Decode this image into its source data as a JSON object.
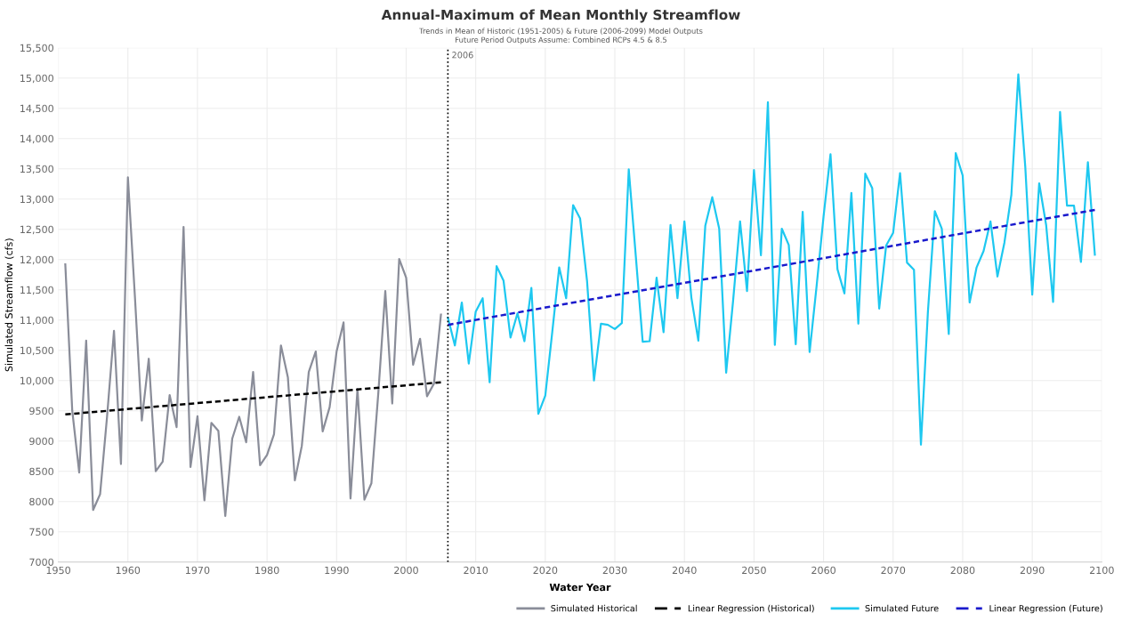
{
  "chart_data": {
    "type": "line",
    "title": "Annual-Maximum of Mean Monthly Streamflow",
    "subtitle": "Trends in Mean of Historic (1951-2005) & Future (2006-2099) Model Outputs\nFuture Period Outputs Assume: Combined RCPs 4.5 & 8.5",
    "xlabel": "Water Year",
    "ylabel": "Simulated Streamflow (cfs)",
    "xlim": [
      1950,
      2100
    ],
    "xticks": [
      1950,
      1960,
      1970,
      1980,
      1990,
      2000,
      2010,
      2020,
      2030,
      2040,
      2050,
      2060,
      2070,
      2080,
      2090,
      2100
    ],
    "ylim": [
      7000,
      15500
    ],
    "yticks": [
      7000,
      7500,
      8000,
      8500,
      9000,
      9500,
      {
        "value": 10000,
        "label": "10,000"
      },
      {
        "value": 10500,
        "label": "10,500"
      },
      {
        "value": 11000,
        "label": "11,000"
      },
      {
        "value": 11500,
        "label": "11,500"
      },
      {
        "value": 12000,
        "label": "12,000"
      },
      {
        "value": 12500,
        "label": "12,500"
      },
      {
        "value": 13000,
        "label": "13,000"
      },
      {
        "value": 13500,
        "label": "13,500"
      },
      {
        "value": 14000,
        "label": "14,000"
      },
      {
        "value": 14500,
        "label": "14,500"
      },
      {
        "value": 15000,
        "label": "15,000"
      },
      {
        "value": 15500,
        "label": "15,500"
      }
    ],
    "grid": true,
    "legend": "bottom right",
    "marker": "none",
    "ref_lines": [
      {
        "axis": "x",
        "value": 2006,
        "label": "2006",
        "color": "#000000",
        "line_style": "dotted"
      }
    ],
    "series": [
      {
        "name": "Simulated Historical",
        "color": "#8a8d99",
        "line_style": "solid",
        "x": [
          1951,
          1952,
          1953,
          1954,
          1955,
          1956,
          1957,
          1958,
          1959,
          1960,
          1961,
          1962,
          1963,
          1964,
          1965,
          1966,
          1967,
          1968,
          1969,
          1970,
          1971,
          1972,
          1973,
          1974,
          1975,
          1976,
          1977,
          1978,
          1979,
          1980,
          1981,
          1982,
          1983,
          1984,
          1985,
          1986,
          1987,
          1988,
          1989,
          1990,
          1991,
          1992,
          1993,
          1994,
          1995,
          1996,
          1997,
          1998,
          1999,
          2000,
          2001,
          2002,
          2003,
          2004,
          2005
        ],
        "values": [
          11920,
          9500,
          8480,
          10660,
          7860,
          8120,
          9400,
          10820,
          8620,
          13360,
          11400,
          9340,
          10360,
          8500,
          8660,
          9760,
          9230,
          12540,
          8570,
          9410,
          8020,
          9300,
          9170,
          7760,
          9040,
          9400,
          8980,
          10140,
          8600,
          8770,
          9110,
          10580,
          10050,
          8350,
          8920,
          10140,
          10480,
          9160,
          9560,
          10480,
          10960,
          8050,
          9860,
          8030,
          8300,
          9800,
          11480,
          9620,
          12010,
          11700,
          10260,
          10690,
          9740,
          9950,
          11090
        ]
      },
      {
        "name": "Linear Regression (Historical)",
        "color": "#000000",
        "line_style": "dashed",
        "x": [
          1951,
          2005
        ],
        "values": [
          9440,
          9970
        ]
      },
      {
        "name": "Simulated Future",
        "color": "#1ec8f0",
        "line_style": "solid",
        "x": [
          2006,
          2007,
          2008,
          2009,
          2010,
          2011,
          2012,
          2013,
          2014,
          2015,
          2016,
          2017,
          2018,
          2019,
          2020,
          2021,
          2022,
          2023,
          2024,
          2025,
          2026,
          2027,
          2028,
          2029,
          2030,
          2031,
          2032,
          2033,
          2034,
          2035,
          2036,
          2037,
          2038,
          2039,
          2040,
          2041,
          2042,
          2043,
          2044,
          2045,
          2046,
          2047,
          2048,
          2049,
          2050,
          2051,
          2052,
          2053,
          2054,
          2055,
          2056,
          2057,
          2058,
          2059,
          2060,
          2061,
          2062,
          2063,
          2064,
          2065,
          2066,
          2067,
          2068,
          2069,
          2070,
          2071,
          2072,
          2073,
          2074,
          2075,
          2076,
          2077,
          2078,
          2079,
          2080,
          2081,
          2082,
          2083,
          2084,
          2085,
          2086,
          2087,
          2088,
          2089,
          2090,
          2091,
          2092,
          2093,
          2094,
          2095,
          2096,
          2097,
          2098,
          2099
        ],
        "values": [
          11040,
          10580,
          11290,
          10280,
          11140,
          11360,
          9970,
          11890,
          11650,
          10710,
          11110,
          10650,
          11530,
          9450,
          9750,
          10800,
          11870,
          11360,
          12900,
          12680,
          11650,
          10000,
          10940,
          10920,
          10850,
          10950,
          13490,
          12070,
          10640,
          10650,
          11700,
          10800,
          12570,
          11360,
          12630,
          11370,
          10660,
          12560,
          13030,
          12510,
          10130,
          11320,
          12630,
          11480,
          13480,
          12070,
          14600,
          10590,
          12510,
          12240,
          10600,
          12790,
          10470,
          11560,
          12710,
          13740,
          11840,
          11440,
          13100,
          10940,
          13420,
          13180,
          11190,
          12230,
          12440,
          13430,
          11950,
          11830,
          8940,
          11130,
          12800,
          12510,
          10770,
          13760,
          13390,
          11290,
          11870,
          12140,
          12630,
          11720,
          12280,
          13070,
          15060,
          13530,
          11420,
          13260,
          12570,
          11300,
          14440,
          12890,
          12890,
          11960,
          13610,
          12080
        ]
      },
      {
        "name": "Linear Regression (Future)",
        "color": "#1a1acc",
        "line_style": "dashed",
        "x": [
          2006,
          2099
        ],
        "values": [
          10920,
          12820
        ]
      }
    ]
  }
}
